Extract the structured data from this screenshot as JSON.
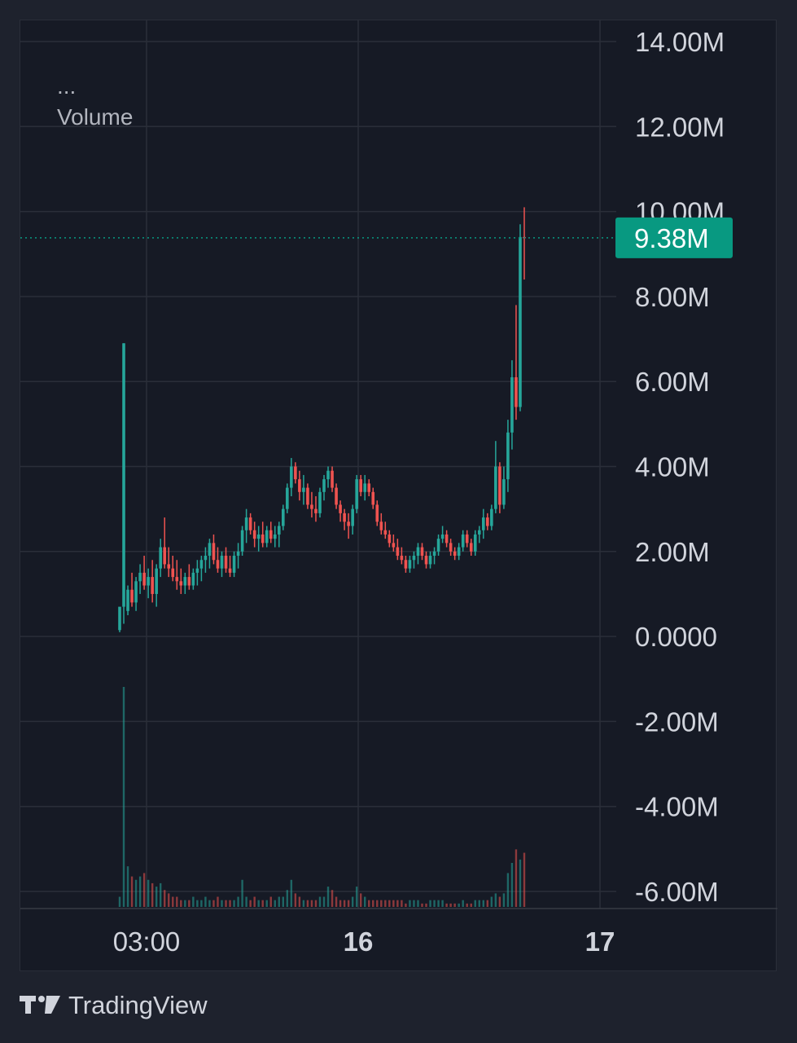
{
  "legend": {
    "menu": "...",
    "name": "Volume"
  },
  "chart_data": {
    "type": "candlestick",
    "y_axis_labels": [
      "14.00M",
      "12.00M",
      "10.00M",
      "8.00M",
      "6.00M",
      "4.00M",
      "2.00M",
      "0.0000",
      "-2.00M",
      "-4.00M",
      "-6.00M"
    ],
    "ylim": [
      -6000000,
      14000000
    ],
    "x_axis_labels": [
      "03:00",
      "16",
      "17"
    ],
    "last_value": 9380000,
    "last_value_label": "9.38M",
    "colors": {
      "up": "#26a69a",
      "down": "#ef5350",
      "grid": "#2a2e39",
      "badge": "#089981",
      "text": "#d1d4dc"
    },
    "candles": [
      [
        0.15,
        0.1,
        0.4,
        0.7
      ],
      [
        0.7,
        0.3,
        6.9,
        6.9
      ],
      [
        0.6,
        0.5,
        1.2,
        1.1
      ],
      [
        1.1,
        0.7,
        1.5,
        0.8
      ],
      [
        0.8,
        0.6,
        1.4,
        1.3
      ],
      [
        1.3,
        1.0,
        1.7,
        1.5
      ],
      [
        1.5,
        1.1,
        1.9,
        1.2
      ],
      [
        1.2,
        0.9,
        1.6,
        1.4
      ],
      [
        1.4,
        0.8,
        1.8,
        1.0
      ],
      [
        1.0,
        0.7,
        1.7,
        1.6
      ],
      [
        1.6,
        1.4,
        2.3,
        2.1
      ],
      [
        2.1,
        1.6,
        2.8,
        1.7
      ],
      [
        1.7,
        1.4,
        2.1,
        1.6
      ],
      [
        1.6,
        1.3,
        1.9,
        1.4
      ],
      [
        1.4,
        1.1,
        1.8,
        1.3
      ],
      [
        1.3,
        1.0,
        1.6,
        1.2
      ],
      [
        1.2,
        1.0,
        1.5,
        1.4
      ],
      [
        1.4,
        1.1,
        1.7,
        1.2
      ],
      [
        1.2,
        1.1,
        1.6,
        1.5
      ],
      [
        1.5,
        1.2,
        1.8,
        1.6
      ],
      [
        1.6,
        1.3,
        1.9,
        1.8
      ],
      [
        1.8,
        1.5,
        2.1,
        1.9
      ],
      [
        1.9,
        1.6,
        2.3,
        2.2
      ],
      [
        2.2,
        1.7,
        2.4,
        1.8
      ],
      [
        1.8,
        1.5,
        2.1,
        1.6
      ],
      [
        1.6,
        1.4,
        2.0,
        1.9
      ],
      [
        1.9,
        1.5,
        2.1,
        1.6
      ],
      [
        1.6,
        1.4,
        1.9,
        1.5
      ],
      [
        1.5,
        1.4,
        2.0,
        1.9
      ],
      [
        1.9,
        1.6,
        2.2,
        2.0
      ],
      [
        2.0,
        1.9,
        2.6,
        2.5
      ],
      [
        2.5,
        2.2,
        3.0,
        2.8
      ],
      [
        2.8,
        2.4,
        2.9,
        2.5
      ],
      [
        2.5,
        2.1,
        2.7,
        2.3
      ],
      [
        2.3,
        2.0,
        2.6,
        2.4
      ],
      [
        2.4,
        2.1,
        2.7,
        2.2
      ],
      [
        2.2,
        2.1,
        2.6,
        2.5
      ],
      [
        2.5,
        2.2,
        2.7,
        2.3
      ],
      [
        2.3,
        2.1,
        2.6,
        2.4
      ],
      [
        2.4,
        2.1,
        2.7,
        2.6
      ],
      [
        2.6,
        2.5,
        3.1,
        3.0
      ],
      [
        3.0,
        2.9,
        3.6,
        3.5
      ],
      [
        3.5,
        3.3,
        4.2,
        4.0
      ],
      [
        4.0,
        3.6,
        4.1,
        3.7
      ],
      [
        3.7,
        3.2,
        3.9,
        3.4
      ],
      [
        3.4,
        3.1,
        3.8,
        3.5
      ],
      [
        3.5,
        3.0,
        3.6,
        3.1
      ],
      [
        3.1,
        2.8,
        3.4,
        3.0
      ],
      [
        3.0,
        2.7,
        3.3,
        2.9
      ],
      [
        2.9,
        2.8,
        3.5,
        3.4
      ],
      [
        3.4,
        3.2,
        3.8,
        3.7
      ],
      [
        3.7,
        3.5,
        4.0,
        3.9
      ],
      [
        3.9,
        3.4,
        4.0,
        3.5
      ],
      [
        3.5,
        3.0,
        3.6,
        3.1
      ],
      [
        3.1,
        2.7,
        3.2,
        2.9
      ],
      [
        2.9,
        2.5,
        3.0,
        2.7
      ],
      [
        2.7,
        2.3,
        2.9,
        2.6
      ],
      [
        2.6,
        2.4,
        3.1,
        3.0
      ],
      [
        3.0,
        2.9,
        3.8,
        3.7
      ],
      [
        3.7,
        3.3,
        3.8,
        3.4
      ],
      [
        3.4,
        3.2,
        3.8,
        3.6
      ],
      [
        3.6,
        3.3,
        3.7,
        3.4
      ],
      [
        3.4,
        3.0,
        3.5,
        3.1
      ],
      [
        3.1,
        2.6,
        3.2,
        2.7
      ],
      [
        2.7,
        2.4,
        2.9,
        2.5
      ],
      [
        2.5,
        2.3,
        2.7,
        2.4
      ],
      [
        2.4,
        2.1,
        2.5,
        2.2
      ],
      [
        2.2,
        2.0,
        2.4,
        2.1
      ],
      [
        2.1,
        1.8,
        2.3,
        1.9
      ],
      [
        1.9,
        1.7,
        2.1,
        1.8
      ],
      [
        1.8,
        1.5,
        1.9,
        1.6
      ],
      [
        1.6,
        1.5,
        1.9,
        1.8
      ],
      [
        1.8,
        1.6,
        2.0,
        1.9
      ],
      [
        1.9,
        1.7,
        2.2,
        2.1
      ],
      [
        2.1,
        1.8,
        2.2,
        1.9
      ],
      [
        1.9,
        1.6,
        2.0,
        1.7
      ],
      [
        1.7,
        1.6,
        2.0,
        1.9
      ],
      [
        1.9,
        1.7,
        2.1,
        2.0
      ],
      [
        2.0,
        1.9,
        2.4,
        2.3
      ],
      [
        2.3,
        2.2,
        2.6,
        2.4
      ],
      [
        2.4,
        2.1,
        2.5,
        2.2
      ],
      [
        2.2,
        1.9,
        2.3,
        2.0
      ],
      [
        2.0,
        1.8,
        2.1,
        1.9
      ],
      [
        1.9,
        1.8,
        2.2,
        2.1
      ],
      [
        2.1,
        2.0,
        2.5,
        2.4
      ],
      [
        2.4,
        2.1,
        2.5,
        2.2
      ],
      [
        2.2,
        1.9,
        2.3,
        2.0
      ],
      [
        2.0,
        1.9,
        2.5,
        2.4
      ],
      [
        2.4,
        2.2,
        2.6,
        2.5
      ],
      [
        2.5,
        2.3,
        3.0,
        2.8
      ],
      [
        2.8,
        2.5,
        2.9,
        2.6
      ],
      [
        2.6,
        2.5,
        3.1,
        3.0
      ],
      [
        3.0,
        2.9,
        4.6,
        4.0
      ],
      [
        4.0,
        2.9,
        4.1,
        3.1
      ],
      [
        3.1,
        3.0,
        4.0,
        3.7
      ],
      [
        3.7,
        3.4,
        5.1,
        4.8
      ],
      [
        4.8,
        4.4,
        6.5,
        6.1
      ],
      [
        6.1,
        5.1,
        7.8,
        5.4
      ],
      [
        5.4,
        5.3,
        9.7,
        9.4
      ],
      [
        9.4,
        8.4,
        10.1,
        9.38
      ]
    ],
    "volume": [
      0.3,
      6.5,
      1.2,
      0.9,
      0.8,
      0.9,
      1.0,
      0.8,
      0.7,
      0.6,
      0.7,
      0.5,
      0.4,
      0.3,
      0.3,
      0.2,
      0.2,
      0.2,
      0.3,
      0.2,
      0.2,
      0.3,
      0.2,
      0.2,
      0.3,
      0.2,
      0.2,
      0.2,
      0.2,
      0.3,
      0.8,
      0.3,
      0.2,
      0.3,
      0.2,
      0.2,
      0.2,
      0.3,
      0.2,
      0.3,
      0.3,
      0.5,
      0.8,
      0.4,
      0.3,
      0.2,
      0.2,
      0.2,
      0.2,
      0.3,
      0.3,
      0.6,
      0.5,
      0.3,
      0.2,
      0.2,
      0.2,
      0.3,
      0.6,
      0.4,
      0.3,
      0.2,
      0.2,
      0.2,
      0.2,
      0.2,
      0.2,
      0.2,
      0.2,
      0.2,
      0.1,
      0.2,
      0.2,
      0.2,
      0.1,
      0.1,
      0.2,
      0.2,
      0.2,
      0.2,
      0.1,
      0.1,
      0.1,
      0.1,
      0.2,
      0.1,
      0.1,
      0.2,
      0.2,
      0.2,
      0.2,
      0.3,
      0.4,
      0.3,
      0.4,
      1.0,
      1.3,
      1.7,
      1.4,
      1.6
    ]
  },
  "footer": {
    "brand": "TradingView"
  }
}
